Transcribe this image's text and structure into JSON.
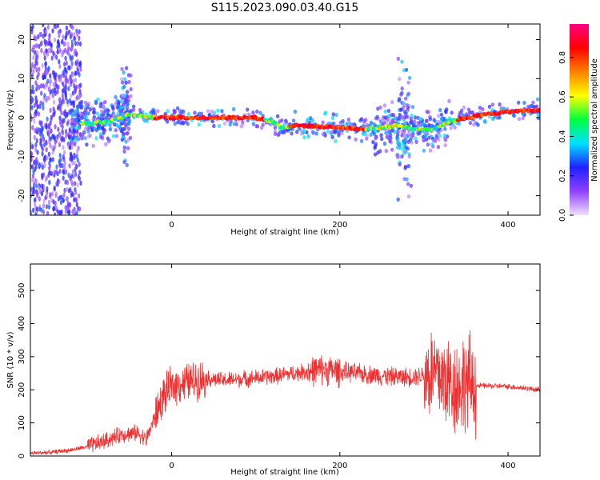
{
  "title": "S115.2023.090.03.40.G15",
  "chart_data": [
    {
      "type": "heatmap",
      "xlabel": "Height of straight line (km)",
      "ylabel": "Frequency (Hz)",
      "xlim": [
        -168,
        438
      ],
      "ylim": [
        -25,
        24
      ],
      "xticks": [
        0,
        200,
        400
      ],
      "yticks": [
        -20,
        -10,
        0,
        10,
        20
      ],
      "colorbar": {
        "label": "Normalized spectral amplitude",
        "range": [
          0,
          0.97
        ],
        "ticks": [
          "0.0",
          "0.2",
          "0.4",
          "0.6",
          "0.8"
        ],
        "colormap": [
          "#f0e0ff",
          "#9040ff",
          "#2020ff",
          "#00e0ff",
          "#00ff40",
          "#ffff00",
          "#ff8000",
          "#ff0000",
          "#ff0080"
        ]
      },
      "ridge": {
        "x": [
          -168,
          -150,
          -120,
          -100,
          -80,
          -60,
          -50,
          -40,
          -20,
          0,
          50,
          100,
          120,
          130,
          150,
          200,
          230,
          250,
          270,
          290,
          310,
          330,
          350,
          380,
          400,
          438
        ],
        "y": [
          0,
          0,
          -1,
          -1.5,
          -1,
          0,
          1,
          0.5,
          0,
          0,
          0,
          0,
          -1,
          -2.5,
          -2,
          -2.5,
          -3,
          -2.5,
          -2,
          -3,
          -3,
          -1,
          0,
          1,
          1.5,
          2
        ]
      },
      "grid": false
    },
    {
      "type": "line",
      "xlabel": "Height of straight line (km)",
      "ylabel": "SNR (10 * v/v)",
      "xlim": [
        -168,
        438
      ],
      "ylim": [
        0,
        580
      ],
      "xticks": [
        0,
        200,
        400
      ],
      "yticks": [
        0,
        100,
        200,
        300,
        400,
        500
      ],
      "color": "#ee3030",
      "series": [
        {
          "x": [
            -168,
            -140,
            -120,
            -100,
            -80,
            -60,
            -40,
            -30,
            -20,
            -10,
            0,
            20,
            40,
            60,
            80,
            100,
            120,
            140,
            160,
            180,
            200,
            220,
            240,
            260,
            280,
            300,
            310,
            320,
            330,
            340,
            350,
            360,
            362,
            380,
            400,
            420,
            438
          ],
          "y": [
            8,
            12,
            18,
            28,
            45,
            65,
            70,
            50,
            120,
            180,
            210,
            225,
            235,
            228,
            232,
            236,
            240,
            248,
            255,
            262,
            255,
            250,
            245,
            240,
            238,
            245,
            250,
            240,
            220,
            210,
            225,
            215,
            212,
            212,
            210,
            205,
            200
          ]
        }
      ],
      "grid": false
    }
  ]
}
